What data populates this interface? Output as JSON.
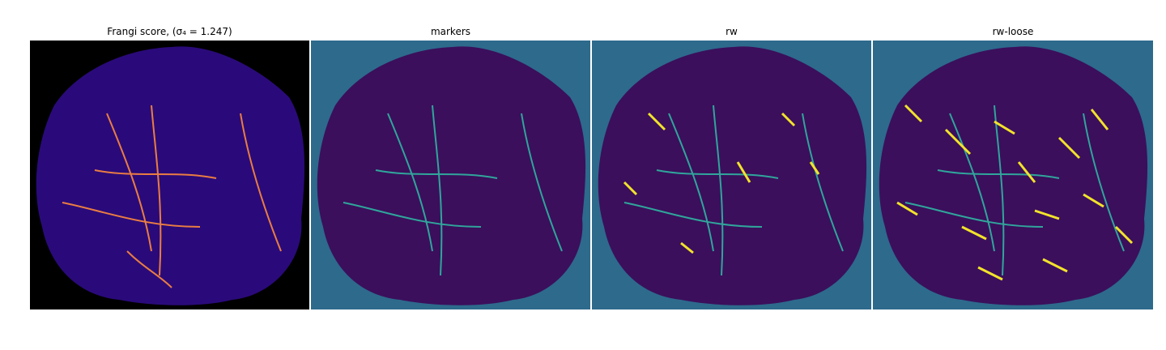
{
  "panels": [
    {
      "title": "Frangi score, (σ₄ = 1.247)",
      "background": "#000000",
      "tissue": "#2a0a7a",
      "vessel": "#ff8a3d"
    },
    {
      "title": "markers",
      "background": "#2d6a8c",
      "tissue": "#3b0f5c",
      "vessel": "#2fb6a2"
    },
    {
      "title": "rw",
      "background": "#2d6a8c",
      "tissue": "#3b0f5c",
      "vessel": "#2fb6a2",
      "highlight": "#f2e32a"
    },
    {
      "title": "rw-loose",
      "background": "#2d6a8c",
      "tissue": "#3b0f5c",
      "vessel": "#2fb6a2",
      "highlight": "#f2e32a"
    }
  ]
}
